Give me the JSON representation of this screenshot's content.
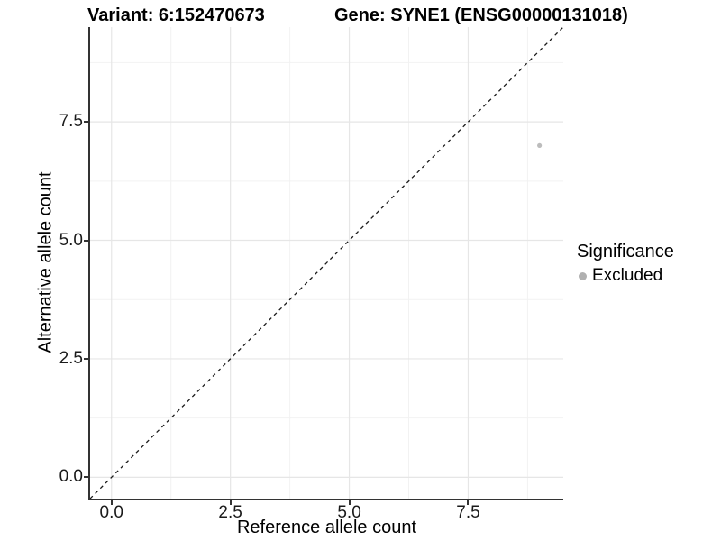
{
  "chart_data": {
    "type": "scatter",
    "title_left": "Variant: 6:152470673",
    "title_right": "Gene: SYNE1 (ENSG00000131018)",
    "xlabel": "Reference allele count",
    "ylabel": "Alternative allele count",
    "xlim": [
      -0.45,
      9.5
    ],
    "ylim": [
      -0.45,
      9.5
    ],
    "xticks": {
      "values": [
        0,
        2.5,
        5,
        7.5
      ],
      "labels": [
        "0.0",
        "2.5",
        "5.0",
        "7.5"
      ]
    },
    "yticks": {
      "values": [
        0,
        2.5,
        5,
        7.5
      ],
      "labels": [
        "0.0",
        "2.5",
        "5.0",
        "7.5"
      ]
    },
    "grid": {
      "major": true,
      "minor": true
    },
    "abline": {
      "slope": 1,
      "intercept": 0,
      "linetype": "dashed",
      "color": "#1a1a1a"
    },
    "series": [
      {
        "name": "Excluded",
        "color": "#bcbcbc",
        "marker": "circle",
        "point_radius": 2.6,
        "points": [
          {
            "x": 9,
            "y": 7
          }
        ]
      }
    ],
    "legend": {
      "title": "Significance",
      "position": "right",
      "items": [
        {
          "label": "Excluded",
          "color": "#b0b0b0"
        }
      ]
    }
  },
  "style": {
    "background": "#ffffff",
    "grid_major_color": "#e6e6e6",
    "grid_minor_color": "#f2f2f2",
    "axis_line_color": "#333333",
    "text_color": "#000000",
    "tick_label_color": "#1a1a1a"
  }
}
